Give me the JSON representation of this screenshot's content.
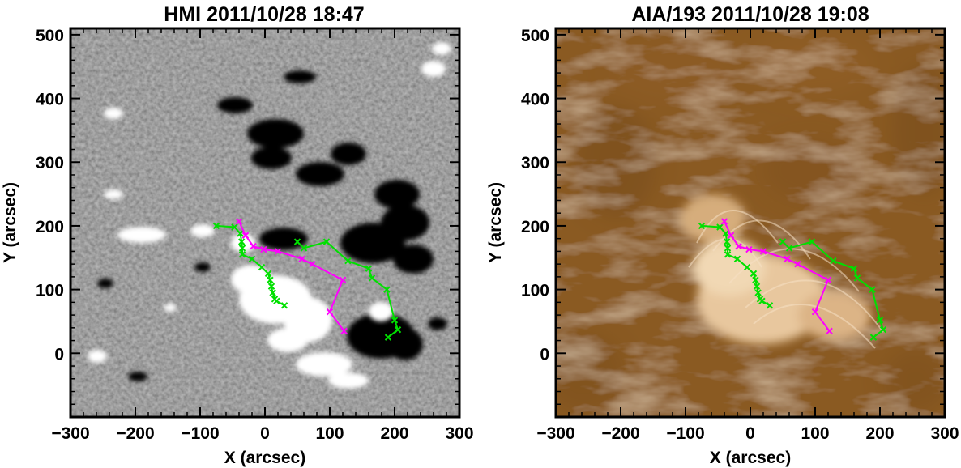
{
  "figure": {
    "x_axis_label": "X (arcsec)",
    "y_axis_label": "Y (arcsec)",
    "x_range": [
      -300,
      300
    ],
    "y_range": [
      -100,
      510
    ],
    "x_ticks": [
      -300,
      -200,
      -100,
      0,
      100,
      200,
      300
    ],
    "y_ticks": [
      0,
      100,
      200,
      300,
      400,
      500
    ],
    "x_tick_labels": [
      "−300",
      "−200",
      "−100",
      "0",
      "100",
      "200",
      "300"
    ],
    "y_tick_labels": [
      "0",
      "100",
      "200",
      "300",
      "400",
      "500"
    ]
  },
  "panels": [
    {
      "id": "hmi",
      "title": "HMI 2011/10/28 18:47",
      "image": "HMI line-of-sight magnetogram (grey with white positive and black negative polarity patches)",
      "colors": {
        "background": "#7d7d7d",
        "positive": "#ffffff",
        "negative": "#000000"
      }
    },
    {
      "id": "aia",
      "title": "AIA/193 2011/10/28 19:08",
      "image": "AIA 193 Å coronal image (brown/gold colour table) with bright loops",
      "colors": {
        "background": "#8a5a20",
        "bright": "#f3dcc0",
        "dark": "#3c2008"
      }
    }
  ],
  "overlay_paths": [
    {
      "color": "#00e000",
      "marker": "x",
      "points": [
        [
          -75,
          200
        ],
        [
          -47,
          198
        ],
        [
          -38,
          188
        ],
        [
          -36,
          175
        ],
        [
          -35,
          165
        ],
        [
          -35,
          155
        ],
        [
          -20,
          148
        ],
        [
          -5,
          135
        ],
        [
          5,
          125
        ],
        [
          8,
          115
        ],
        [
          10,
          105
        ],
        [
          12,
          95
        ],
        [
          15,
          85
        ],
        [
          18,
          82
        ],
        [
          30,
          75
        ]
      ]
    },
    {
      "color": "#00e000",
      "marker": "x",
      "points": [
        [
          50,
          175
        ],
        [
          60,
          165
        ],
        [
          95,
          175
        ],
        [
          128,
          145
        ],
        [
          160,
          133
        ],
        [
          165,
          118
        ],
        [
          188,
          100
        ],
        [
          200,
          52
        ],
        [
          205,
          37
        ],
        [
          190,
          25
        ]
      ]
    },
    {
      "color": "#ff00ff",
      "marker": "x",
      "points": [
        [
          -40,
          207
        ],
        [
          -30,
          185
        ],
        [
          -18,
          168
        ],
        [
          -2,
          163
        ],
        [
          20,
          160
        ],
        [
          57,
          148
        ],
        [
          73,
          140
        ],
        [
          120,
          115
        ],
        [
          100,
          65
        ],
        [
          122,
          35
        ]
      ]
    }
  ]
}
